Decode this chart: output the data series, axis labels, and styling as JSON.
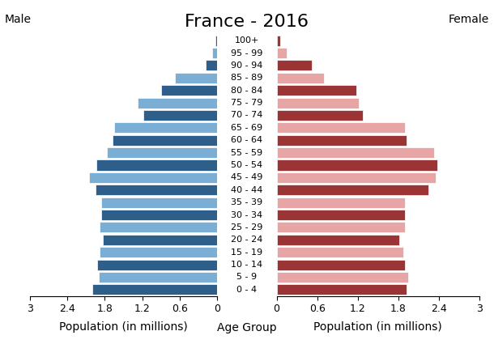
{
  "title": "France - 2016",
  "male_label": "Male",
  "female_label": "Female",
  "xlabel_left": "Population (in millions)",
  "xlabel_center": "Age Group",
  "xlabel_right": "Population (in millions)",
  "age_groups": [
    "0 - 4",
    "5 - 9",
    "10 - 14",
    "15 - 19",
    "20 - 24",
    "25 - 29",
    "30 - 34",
    "35 - 39",
    "40 - 44",
    "45 - 49",
    "50 - 54",
    "55 - 59",
    "60 - 64",
    "65 - 69",
    "70 - 74",
    "75 - 79",
    "80 - 84",
    "85 - 89",
    "90 - 94",
    "95 - 99",
    "100+"
  ],
  "male_values": [
    2.0,
    1.9,
    1.92,
    1.88,
    1.83,
    1.88,
    1.85,
    1.85,
    1.95,
    2.05,
    1.93,
    1.77,
    1.68,
    1.65,
    1.18,
    1.27,
    0.9,
    0.68,
    0.18,
    0.08,
    0.03
  ],
  "female_values": [
    1.92,
    1.95,
    1.9,
    1.88,
    1.82,
    1.9,
    1.9,
    1.9,
    2.25,
    2.35,
    2.38,
    2.33,
    1.93,
    1.9,
    1.28,
    1.22,
    1.18,
    0.7,
    0.52,
    0.15,
    0.05
  ],
  "male_colors_dark": "#2E5F8A",
  "male_colors_light": "#7BAED4",
  "female_colors_dark": "#9B3535",
  "female_colors_light": "#E8A5A5",
  "xlim": [
    0,
    3
  ],
  "xticks": [
    0,
    0.6,
    1.2,
    1.8,
    2.4,
    3.0
  ],
  "xticklabels": [
    "0",
    "0.6",
    "1.2",
    "1.8",
    "2.4",
    "3"
  ],
  "background_color": "#ffffff",
  "title_fontsize": 16,
  "label_fontsize": 10,
  "tick_fontsize": 9,
  "bar_height": 0.85
}
